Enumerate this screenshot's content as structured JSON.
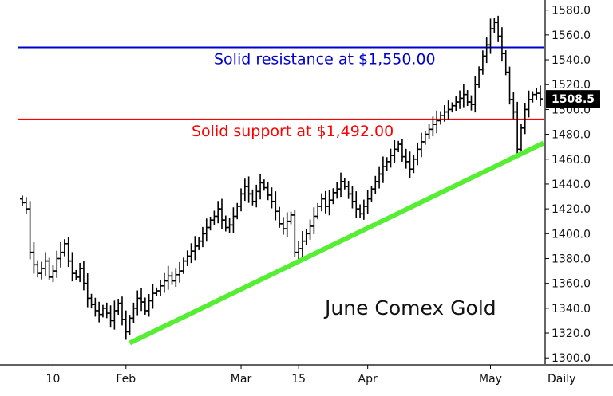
{
  "chart_data": {
    "type": "ohlc",
    "title": "June Comex Gold",
    "period_label": "Daily",
    "last_price": "1508.5",
    "y_ticks": [
      "1300.0",
      "1320.0",
      "1340.0",
      "1360.0",
      "1380.0",
      "1400.0",
      "1420.0",
      "1440.0",
      "1460.0",
      "1480.0",
      "1500.0",
      "1520.0",
      "1540.0",
      "1560.0",
      "1580.0"
    ],
    "ylim": [
      1295,
      1583
    ],
    "x_tick_labels": [
      {
        "label": "10",
        "index": 8
      },
      {
        "label": "Feb",
        "index": 27
      },
      {
        "label": "Mar",
        "index": 57
      },
      {
        "label": "15",
        "index": 72
      },
      {
        "label": "Apr",
        "index": 90
      },
      {
        "label": "May",
        "index": 122
      }
    ],
    "n_days": 136,
    "resistance": {
      "value": 1550.0,
      "label": "Solid resistance at $1,550.00",
      "color": "#0000cc"
    },
    "support": {
      "value": 1492.0,
      "label": "Solid support at $1,492.00",
      "color": "#ff0000"
    },
    "trendline": {
      "start": {
        "index": 28,
        "value": 1312
      },
      "end": {
        "index": 135,
        "value": 1473
      },
      "color": "#55ee33"
    },
    "bar_color": "#000000",
    "closes": [
      1425,
      1420,
      1385,
      1375,
      1368,
      1372,
      1378,
      1365,
      1370,
      1380,
      1385,
      1392,
      1378,
      1368,
      1365,
      1372,
      1360,
      1348,
      1343,
      1338,
      1335,
      1340,
      1336,
      1330,
      1338,
      1344,
      1331,
      1321,
      1332,
      1340,
      1348,
      1345,
      1338,
      1346,
      1352,
      1354,
      1358,
      1362,
      1366,
      1362,
      1367,
      1370,
      1378,
      1382,
      1386,
      1390,
      1394,
      1400,
      1405,
      1411,
      1414,
      1420,
      1411,
      1405,
      1407,
      1414,
      1422,
      1432,
      1438,
      1432,
      1426,
      1434,
      1441,
      1437,
      1431,
      1426,
      1418,
      1408,
      1404,
      1410,
      1415,
      1385,
      1388,
      1394,
      1400,
      1406,
      1414,
      1422,
      1428,
      1422,
      1427,
      1433,
      1436,
      1442,
      1438,
      1432,
      1426,
      1420,
      1416,
      1422,
      1428,
      1436,
      1442,
      1448,
      1454,
      1458,
      1463,
      1468,
      1472,
      1462,
      1458,
      1452,
      1460,
      1468,
      1474,
      1480,
      1484,
      1488,
      1491,
      1495,
      1498,
      1500,
      1503,
      1506,
      1509,
      1512,
      1506,
      1504,
      1520,
      1532,
      1543,
      1552,
      1565,
      1570,
      1559,
      1545,
      1530,
      1508,
      1498,
      1468,
      1485,
      1500,
      1508,
      1512,
      1513,
      1508.5
    ]
  }
}
